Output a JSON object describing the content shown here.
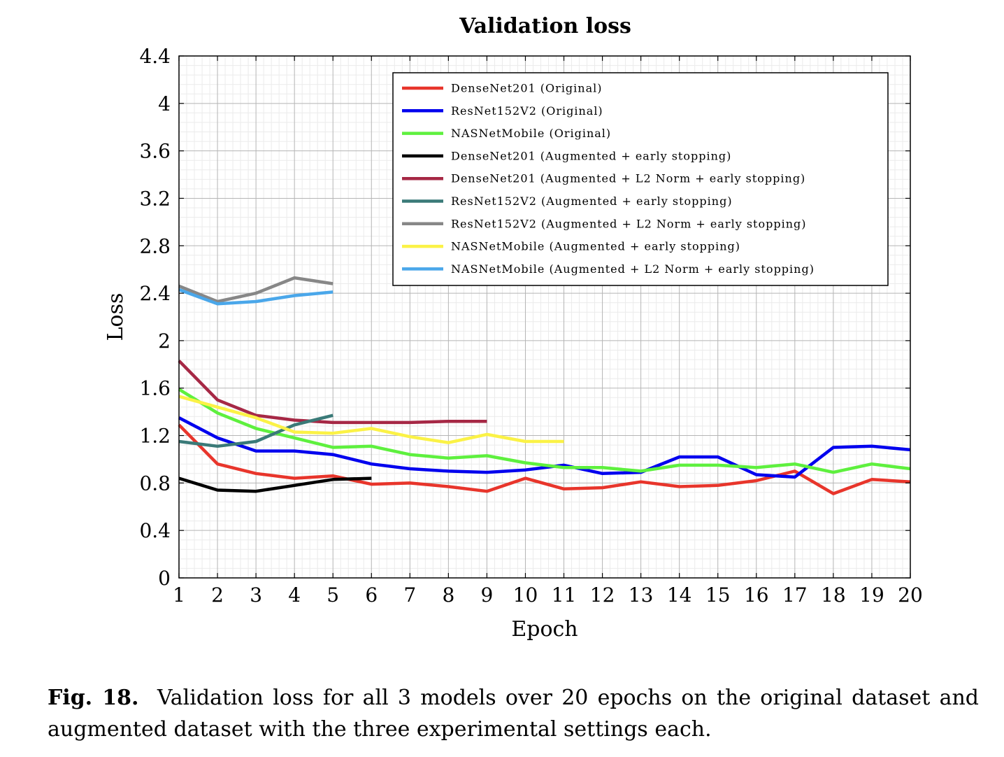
{
  "chart_data": {
    "type": "line",
    "title": "Validation loss",
    "xlabel": "Epoch",
    "ylabel": "Loss",
    "xlim": [
      1,
      20
    ],
    "ylim": [
      0,
      4.4
    ],
    "x_ticks": [
      1,
      2,
      3,
      4,
      5,
      6,
      7,
      8,
      9,
      10,
      11,
      12,
      13,
      14,
      15,
      16,
      17,
      18,
      19,
      20
    ],
    "y_ticks": [
      "0",
      "0.4",
      "0.8",
      "1.2",
      "1.6",
      "2",
      "2.4",
      "2.8",
      "3.2",
      "3.6",
      "4",
      "4.4"
    ],
    "grid": true,
    "legend_position": "top-right",
    "series": [
      {
        "name": "DenseNet201 (Original)",
        "color": "#e8352b",
        "x": [
          1,
          2,
          3,
          4,
          5,
          6,
          7,
          8,
          9,
          10,
          11,
          12,
          13,
          14,
          15,
          16,
          17,
          18,
          19,
          20
        ],
        "values": [
          1.29,
          0.96,
          0.88,
          0.84,
          0.86,
          0.79,
          0.8,
          0.77,
          0.73,
          0.84,
          0.75,
          0.76,
          0.81,
          0.77,
          0.78,
          0.82,
          0.9,
          0.71,
          0.83,
          0.81
        ]
      },
      {
        "name": "ResNet152V2 (Original)",
        "color": "#0000ee",
        "x": [
          1,
          2,
          3,
          4,
          5,
          6,
          7,
          8,
          9,
          10,
          11,
          12,
          13,
          14,
          15,
          16,
          17,
          18,
          19,
          20
        ],
        "values": [
          1.35,
          1.18,
          1.07,
          1.07,
          1.04,
          0.96,
          0.92,
          0.9,
          0.89,
          0.91,
          0.95,
          0.88,
          0.89,
          1.02,
          1.02,
          0.87,
          0.85,
          1.1,
          1.11,
          1.08
        ]
      },
      {
        "name": "NASNetMobile (Original)",
        "color": "#5ef03e",
        "x": [
          1,
          2,
          3,
          4,
          5,
          6,
          7,
          8,
          9,
          10,
          11,
          12,
          13,
          14,
          15,
          16,
          17,
          18,
          19,
          20
        ],
        "values": [
          1.59,
          1.39,
          1.26,
          1.18,
          1.1,
          1.11,
          1.04,
          1.01,
          1.03,
          0.97,
          0.93,
          0.93,
          0.9,
          0.95,
          0.95,
          0.93,
          0.96,
          0.89,
          0.96,
          0.92
        ]
      },
      {
        "name": "DenseNet201 (Augmented + early stopping)",
        "color": "#000000",
        "x": [
          1,
          2,
          3,
          4,
          5,
          6
        ],
        "values": [
          0.84,
          0.74,
          0.73,
          0.78,
          0.83,
          0.84
        ]
      },
      {
        "name": "DenseNet201 (Augmented + L2 Norm + early stopping)",
        "color": "#a62845",
        "x": [
          1,
          2,
          3,
          4,
          5,
          6,
          7,
          8,
          9
        ],
        "values": [
          1.83,
          1.5,
          1.37,
          1.33,
          1.31,
          1.31,
          1.31,
          1.32,
          1.32
        ]
      },
      {
        "name": "ResNet152V2 (Augmented + early stopping)",
        "color": "#3a7a78",
        "x": [
          1,
          2,
          3,
          4,
          5
        ],
        "values": [
          1.15,
          1.11,
          1.15,
          1.29,
          1.37
        ]
      },
      {
        "name": "ResNet152V2 (Augmented + L2 Norm + early stopping)",
        "color": "#878787",
        "x": [
          1,
          2,
          3,
          4,
          5
        ],
        "values": [
          2.46,
          2.33,
          2.4,
          2.53,
          2.48
        ]
      },
      {
        "name": "NASNetMobile (Augmented + early stopping)",
        "color": "#fbf246",
        "x": [
          1,
          2,
          3,
          4,
          5,
          6,
          7,
          8,
          9,
          10,
          11
        ],
        "values": [
          1.53,
          1.44,
          1.35,
          1.23,
          1.22,
          1.26,
          1.19,
          1.14,
          1.21,
          1.15,
          1.15
        ]
      },
      {
        "name": "NASNetMobile (Augmented + L2 Norm + early stopping)",
        "color": "#4aa7ea",
        "x": [
          1,
          2,
          3,
          4,
          5
        ],
        "values": [
          2.43,
          2.31,
          2.33,
          2.38,
          2.41
        ]
      }
    ]
  },
  "caption": {
    "label": "Fig. 18.",
    "text": "Validation loss for all 3 models over 20 epochs on the original dataset and augmented dataset with the three experimental settings each."
  }
}
